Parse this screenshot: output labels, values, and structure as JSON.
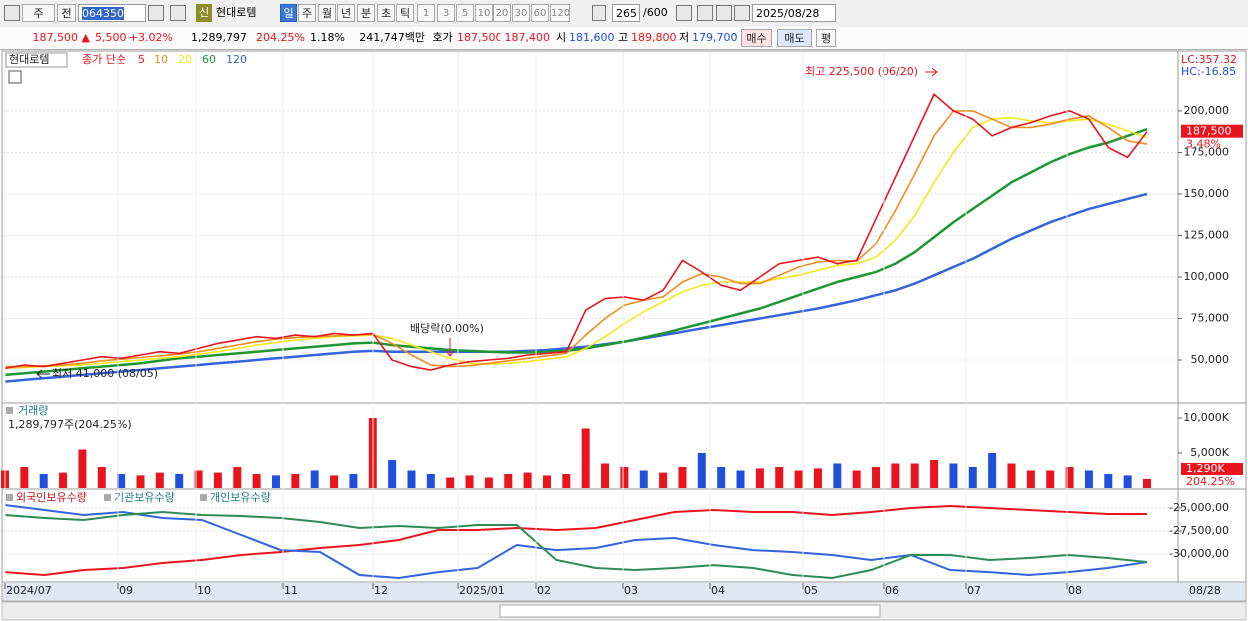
{
  "toolbar": {
    "row1": [
      "주",
      "전",
      "064350",
      "신",
      "현대로템",
      "일",
      "주",
      "월",
      "년",
      "분",
      "초",
      "틱",
      "1",
      "3",
      "5",
      "10",
      "20",
      "30",
      "60",
      "120",
      "265",
      "/600",
      "2025/08/28"
    ],
    "row2": [
      "187,500 ▲",
      "5,500",
      "+3.02%",
      "1,289,797",
      "204.25%",
      "1.18%",
      "241,747백만",
      "호가",
      "187,500",
      "187,400",
      "시",
      "181,600",
      "고",
      "189,800",
      "저",
      "179,700",
      "매수",
      "매도",
      "평"
    ]
  },
  "chart_data": [
    {
      "type": "line",
      "legend_name": "현대로템",
      "legend_prefix": "종가 단순",
      "ylim": [
        24700,
        235500
      ],
      "yticks": [
        {
          "value": 50000,
          "label": "50,000"
        },
        {
          "value": 75000,
          "label": "75,000"
        },
        {
          "value": 100000,
          "label": "100,000"
        },
        {
          "value": 125000,
          "label": "125,000"
        },
        {
          "value": 150000,
          "label": "150,000"
        },
        {
          "value": 175000,
          "label": "175,000"
        },
        {
          "value": 200000,
          "label": "200,000"
        }
      ],
      "grid": true,
      "corner_labels": [
        "LC:357.32",
        "HC:-16.85"
      ],
      "annotations": [
        "최고 225,500 (06/20)",
        "최저 41,000 (08/05)",
        "배당락(0.00%)"
      ],
      "current": {
        "value": 187500,
        "label": "187,500"
      },
      "change_label": "3.48%",
      "series": [
        {
          "name": "5",
          "color": "#e8141e",
          "values": [
            45000,
            47000,
            46000,
            48000,
            50000,
            52000,
            51000,
            53000,
            55000,
            54000,
            57000,
            60000,
            62000,
            64000,
            63000,
            65000,
            64000,
            66000,
            65000,
            66000,
            50000,
            46000,
            44000,
            47000,
            49000,
            50000,
            51000,
            53000,
            54000,
            55000,
            80000,
            87000,
            88000,
            86000,
            92000,
            110000,
            103000,
            95000,
            92000,
            100000,
            108000,
            110000,
            112000,
            108000,
            110000,
            135000,
            160000,
            185000,
            210000,
            200000,
            195000,
            185000,
            190000,
            193000,
            197000,
            200000,
            195000,
            178000,
            172000,
            187500
          ]
        },
        {
          "name": "10",
          "color": "#f08c1e",
          "values": [
            46000,
            46000,
            46500,
            47000,
            48000,
            49500,
            50500,
            51500,
            52500,
            53500,
            55000,
            57000,
            59000,
            61000,
            62500,
            63500,
            64000,
            64500,
            65000,
            65500,
            60000,
            53000,
            47000,
            46000,
            46500,
            48000,
            49500,
            51000,
            52500,
            54000,
            65000,
            75000,
            83000,
            86000,
            88000,
            97000,
            102000,
            100000,
            96000,
            96000,
            101000,
            106000,
            109000,
            110000,
            109500,
            120000,
            140000,
            162000,
            185000,
            200000,
            200000,
            195000,
            190000,
            190000,
            192000,
            195000,
            197000,
            190000,
            182000,
            180000
          ]
        },
        {
          "name": "20",
          "color": "#f5e61e",
          "values": [
            45000,
            45500,
            46000,
            46500,
            47000,
            48000,
            49000,
            50000,
            51000,
            52000,
            53500,
            55000,
            57000,
            59000,
            60500,
            62000,
            63000,
            64000,
            64500,
            65000,
            63000,
            59000,
            55000,
            51000,
            48000,
            47500,
            48000,
            49000,
            50500,
            52000,
            57000,
            64000,
            72000,
            79000,
            85000,
            91000,
            95000,
            97000,
            97000,
            97000,
            99000,
            101000,
            104000,
            107000,
            108000,
            112000,
            122000,
            137000,
            157000,
            175000,
            190000,
            195000,
            196000,
            194000,
            193000,
            194000,
            195000,
            192000,
            188000,
            184000
          ]
        },
        {
          "name": "60",
          "color": "#1e9632",
          "values": [
            41000,
            42000,
            43000,
            44000,
            45000,
            46000,
            47000,
            48000,
            49500,
            51000,
            52000,
            53000,
            54000,
            55000,
            56000,
            57000,
            58000,
            59000,
            60000,
            60500,
            59000,
            58000,
            57000,
            56000,
            55500,
            55000,
            54500,
            54500,
            55000,
            55500,
            57000,
            59000,
            61000,
            63500,
            66000,
            69000,
            72000,
            75000,
            78000,
            81000,
            85000,
            89000,
            93000,
            97000,
            100000,
            103000,
            108000,
            115000,
            124000,
            133000,
            141000,
            149000,
            157000,
            163000,
            169000,
            174000,
            178000,
            181000,
            185000,
            189000
          ]
        },
        {
          "name": "120",
          "color": "#3264dc",
          "values": [
            37000,
            38000,
            39000,
            40000,
            41000,
            42000,
            43000,
            44000,
            45000,
            46000,
            47000,
            48000,
            49000,
            50000,
            51000,
            52000,
            53000,
            54000,
            55000,
            55500,
            55000,
            55000,
            55000,
            55000,
            55000,
            55000,
            55000,
            55500,
            56000,
            57000,
            58000,
            59500,
            61000,
            63000,
            65000,
            67000,
            69000,
            71000,
            73000,
            75000,
            77000,
            79000,
            81000,
            83500,
            86000,
            89000,
            92000,
            96000,
            101000,
            106000,
            111000,
            117000,
            123000,
            128000,
            133000,
            137000,
            141000,
            144000,
            147000,
            150000
          ]
        }
      ]
    },
    {
      "type": "bar",
      "title": "거래량",
      "subtitle": "1,289,797주(204.25%)",
      "ylim": [
        0,
        11860
      ],
      "yticks": [
        {
          "value": 5000,
          "label": "5,000K"
        },
        {
          "value": 10000,
          "label": "10,000K"
        }
      ],
      "up_color": "#e8141e",
      "down_color": "#1e50dc",
      "current": {
        "value": 1290,
        "label": "1,290K"
      },
      "current_ratio": "204.25%",
      "values": [
        2500,
        3000,
        2000,
        2200,
        5500,
        3000,
        2000,
        1800,
        2200,
        2000,
        2500,
        2200,
        3000,
        2000,
        1800,
        2000,
        2500,
        1800,
        2000,
        10000,
        4000,
        2500,
        2000,
        1500,
        1800,
        1500,
        2000,
        2200,
        1800,
        2000,
        8500,
        3500,
        3000,
        2500,
        2200,
        3000,
        5000,
        3000,
        2500,
        2800,
        3000,
        2500,
        2800,
        3500,
        2500,
        3000,
        3500,
        3500,
        4000,
        3500,
        3000,
        5000,
        3500,
        2500,
        2500,
        3000,
        2500,
        2000,
        1800,
        1290
      ]
    },
    {
      "type": "line",
      "ylim": [
        -3304000,
        -2326000
      ],
      "yticks": [
        {
          "value": -2500000,
          "label": "-25,000,00"
        },
        {
          "value": -2750000,
          "label": "-27,500,00"
        },
        {
          "value": -3000000,
          "label": "-30,000,00"
        }
      ],
      "xtick_labels": [
        "2024/07",
        "09",
        "10",
        "11",
        "12",
        "2025/01",
        "02",
        "03",
        "04",
        "05",
        "06",
        "07",
        "08",
        "08/28"
      ],
      "series": [
        {
          "name": "외국인보유수량",
          "color": "#e8141e",
          "values": [
            -3196000,
            -3228000,
            -3174000,
            -3152000,
            -3098000,
            -3065000,
            -3011000,
            -2978000,
            -2935000,
            -2902000,
            -2848000,
            -2739000,
            -2739000,
            -2717000,
            -2739000,
            -2717000,
            -2630000,
            -2543000,
            -2522000,
            -2543000,
            -2543000,
            -2576000,
            -2543000,
            -2500000,
            -2478000,
            -2500000,
            -2522000,
            -2543000,
            -2565000,
            -2565000
          ]
        },
        {
          "name": "기관보유수량",
          "color": "#3264dc",
          "values": [
            -2467000,
            -2522000,
            -2576000,
            -2543000,
            -2609000,
            -2630000,
            -2793000,
            -2957000,
            -2978000,
            -3228000,
            -3261000,
            -3196000,
            -3152000,
            -2902000,
            -2957000,
            -2935000,
            -2848000,
            -2826000,
            -2902000,
            -2957000,
            -2978000,
            -3011000,
            -3065000,
            -3011000,
            -3174000,
            -3196000,
            -3228000,
            -3196000,
            -3152000,
            -3087000
          ]
        },
        {
          "name": "개인보유수량",
          "color": "#2e8b57",
          "values": [
            -2576000,
            -2609000,
            -2630000,
            -2576000,
            -2543000,
            -2576000,
            -2587000,
            -2609000,
            -2652000,
            -2717000,
            -2696000,
            -2717000,
            -2685000,
            -2685000,
            -3065000,
            -3152000,
            -3174000,
            -3152000,
            -3120000,
            -3152000,
            -3228000,
            -3261000,
            -3174000,
            -3011000,
            -3011000,
            -3065000,
            -3043000,
            -3011000,
            -3043000,
            -3087000
          ]
        }
      ]
    }
  ]
}
